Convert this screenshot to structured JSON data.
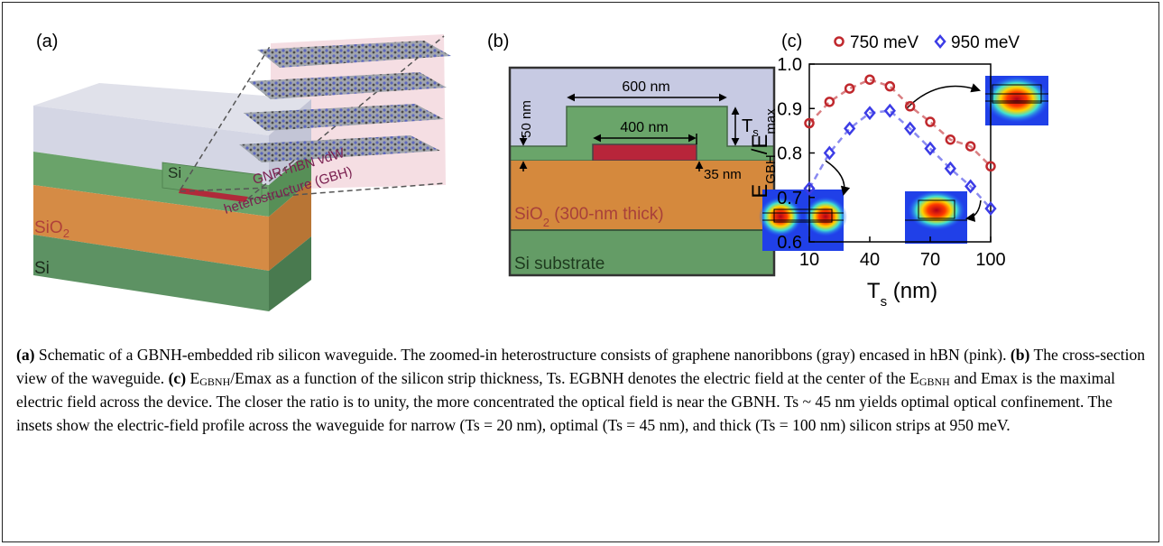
{
  "panel_a": {
    "label": "(a)",
    "top_si": "Si",
    "sio2": {
      "text": "SiO",
      "sub": "2"
    },
    "bottom_si": "Si",
    "callout": [
      "GNR+hBN vdW",
      "heterostructure (GBH)"
    ]
  },
  "panel_b": {
    "label": "(b)",
    "rib_width": "600 nm",
    "strip_width": "400 nm",
    "slab_thickness": "50 nm",
    "ts": {
      "text": "T",
      "sub": "s"
    },
    "gap": "35 nm",
    "oxide": [
      {
        "text": "SiO"
      },
      {
        "sub": "2"
      },
      {
        "text": " (300-nm thick)"
      }
    ],
    "substrate": "Si substrate"
  },
  "chart_data": {
    "type": "line",
    "panel_label": "(c)",
    "x_label": [
      {
        "text": "T"
      },
      {
        "sub": "s"
      },
      {
        "text": " (nm)"
      }
    ],
    "y_label": [
      {
        "text": "E"
      },
      {
        "sub": "GBH"
      },
      {
        "text": "/E"
      },
      {
        "sub": "max"
      }
    ],
    "x": [
      10,
      20,
      30,
      40,
      50,
      60,
      70,
      80,
      90,
      100
    ],
    "series": [
      {
        "name": "750 meV",
        "color": "#c0282d",
        "marker": "circle",
        "values": [
          0.867,
          0.915,
          0.945,
          0.965,
          0.95,
          0.905,
          0.87,
          0.83,
          0.815,
          0.77
        ]
      },
      {
        "name": "950 meV",
        "color": "#3c3ce6",
        "marker": "diamond",
        "values": [
          0.72,
          0.8,
          0.855,
          0.89,
          0.895,
          0.855,
          0.81,
          0.765,
          0.725,
          0.675
        ]
      }
    ],
    "xlim": [
      10,
      100
    ],
    "ylim": [
      0.6,
      1.0
    ],
    "xticks": [
      10,
      40,
      70,
      100
    ],
    "yticks": [
      0.6,
      0.7,
      0.8,
      0.9,
      {
        "value": 1.0,
        "label": "1.0"
      }
    ],
    "grid": false,
    "legend": "top"
  },
  "caption": [
    {
      "bold": "(a)"
    },
    {
      "text": " Schematic of a GBNH-embedded rib silicon waveguide. The zoomed-in heterostructure consists of graphene nanoribbons (gray) encased in hBN (pink). "
    },
    {
      "bold": "(b)"
    },
    {
      "text": " The cross-section view of the waveguide. "
    },
    {
      "bold": "(c)"
    },
    {
      "text": " E"
    },
    {
      "sub": "GBNH"
    },
    {
      "text": "/Emax as a function of the silicon strip thickness, Ts. EGBNH denotes the electric field at the center of the E"
    },
    {
      "sub": "GBNH"
    },
    {
      "text": " and Emax is the maximal electric field across the device. The closer the ratio is to unity, the more concentrated the optical field is near the GBNH. Ts ~ 45 nm yields optimal optical confinement. The insets show the electric-field profile across the waveguide for narrow (Ts = 20 nm), optimal (Ts = 45 nm), and thick (Ts = 100 nm) silicon strips at 950 meV."
    }
  ]
}
